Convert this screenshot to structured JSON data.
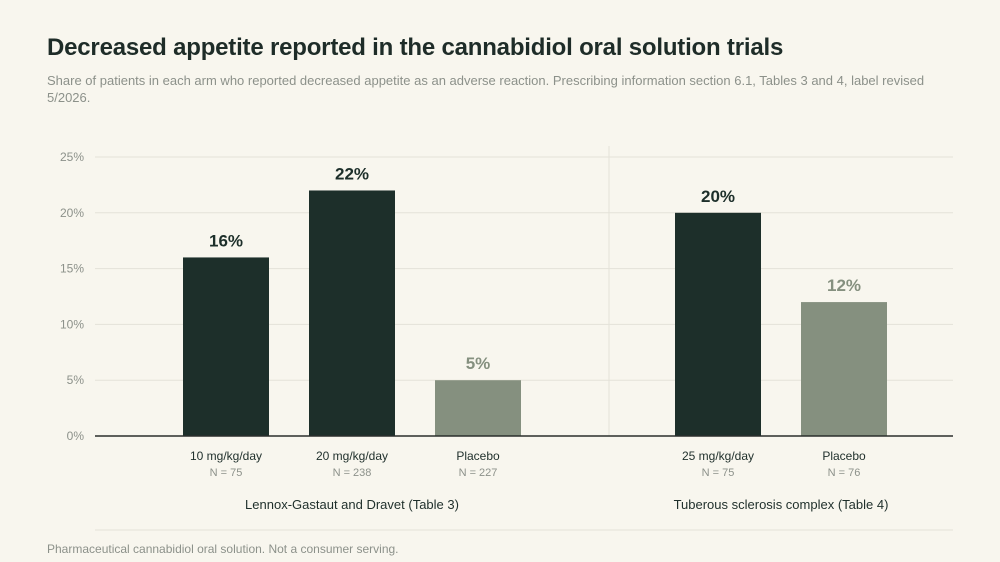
{
  "title": "Decreased appetite reported in the cannabidiol oral solution trials",
  "subtitle": "Share of patients in each arm who reported decreased appetite as an adverse reaction. Prescribing information section 6.1, Tables 3 and 4, label revised 5/2026.",
  "footnote": "Pharmaceutical cannabidiol oral solution. Not a consumer serving.",
  "colors": {
    "treatment": "#1d2f2a",
    "placebo": "#85907f",
    "grid": "#e4e2d8",
    "axis": "#2a2f2c"
  },
  "chart_data": {
    "type": "bar",
    "ylim": [
      0,
      25
    ],
    "yticks": [
      "0%",
      "5%",
      "10%",
      "15%",
      "20%",
      "25%"
    ],
    "grid": true,
    "groups": [
      {
        "name": "Lennox-Gastaut and Dravet (Table 3)",
        "bars": [
          {
            "category": "10 mg/kg/day",
            "n": "N = 75",
            "value": 16,
            "label": "16%",
            "kind": "treatment"
          },
          {
            "category": "20 mg/kg/day",
            "n": "N = 238",
            "value": 22,
            "label": "22%",
            "kind": "treatment"
          },
          {
            "category": "Placebo",
            "n": "N = 227",
            "value": 5,
            "label": "5%",
            "kind": "placebo"
          }
        ]
      },
      {
        "name": "Tuberous sclerosis complex (Table 4)",
        "bars": [
          {
            "category": "25 mg/kg/day",
            "n": "N = 75",
            "value": 20,
            "label": "20%",
            "kind": "treatment"
          },
          {
            "category": "Placebo",
            "n": "N = 76",
            "value": 12,
            "label": "12%",
            "kind": "placebo"
          }
        ]
      }
    ]
  }
}
